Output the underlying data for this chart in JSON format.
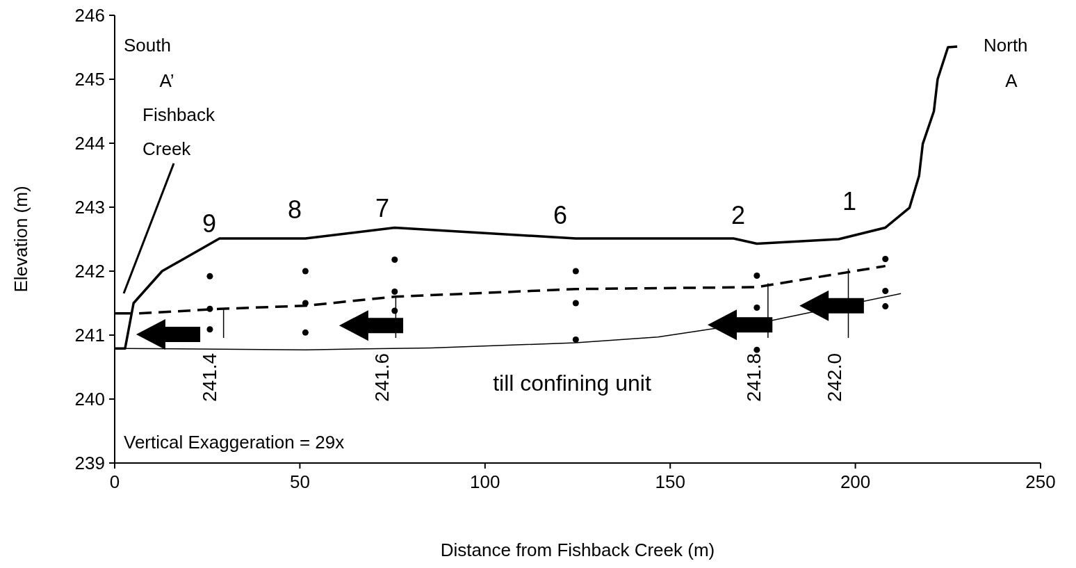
{
  "chart_data": {
    "type": "line",
    "xlabel": "Distance from Fishback Creek (m)",
    "ylabel": "Elevation (m)",
    "xlim": [
      0,
      250
    ],
    "xticks": [
      0,
      50,
      100,
      150,
      200,
      250
    ],
    "ylim": [
      239,
      246
    ],
    "yticks": [
      239,
      240,
      241,
      242,
      243,
      244,
      245,
      246
    ],
    "grid": false,
    "series": [
      {
        "color": "#000000",
        "line_style": "solid",
        "marker": "none",
        "x": [
          0,
          2.8,
          5.1,
          12.8,
          28.3,
          51.5,
          75.6,
          124.5,
          167.1,
          173.4,
          195.5,
          208.1,
          214.6,
          217.2,
          218.2,
          221.2,
          222.2,
          225.0,
          227.5
        ],
        "values": [
          240.79,
          240.79,
          241.5,
          242.0,
          242.51,
          242.51,
          242.68,
          242.51,
          242.51,
          242.43,
          242.5,
          242.68,
          242.99,
          243.49,
          243.99,
          244.5,
          245.0,
          245.5,
          245.51
        ]
      },
      {
        "color": "#000000",
        "line_style": "solid",
        "marker": "none",
        "x": [
          0,
          4.3
        ],
        "values": [
          241.34,
          241.34
        ]
      },
      {
        "color": "#000000",
        "line_style": "dashed",
        "marker": "none",
        "x": [
          6.6,
          28.5,
          51.5,
          75.6,
          124.5,
          173.4,
          208.1
        ],
        "values": [
          241.34,
          241.41,
          241.46,
          241.6,
          241.72,
          241.75,
          242.08
        ]
      },
      {
        "color": "#000000",
        "line_style": "solid",
        "marker": "none",
        "x": [
          2.8,
          51.6,
          85.4,
          124.5,
          146.7,
          159.2,
          177.6,
          212.3
        ],
        "values": [
          240.79,
          240.77,
          240.8,
          240.88,
          240.97,
          241.08,
          241.23,
          241.65
        ]
      },
      {
        "type": "scatter",
        "color": "#000000",
        "marker": "circle",
        "x": [
          25.7,
          25.7,
          25.7,
          51.5,
          51.5,
          51.5,
          75.6,
          75.6,
          75.6,
          124.5,
          124.5,
          124.5,
          173.4,
          173.4,
          173.4,
          208.1,
          208.1,
          208.1
        ],
        "values": [
          241.92,
          241.41,
          241.09,
          242.0,
          241.5,
          241.04,
          242.18,
          241.68,
          241.38,
          242.0,
          241.5,
          240.93,
          241.93,
          241.43,
          240.77,
          242.19,
          241.69,
          241.45
        ]
      }
    ],
    "annotations": [
      "South",
      "A’",
      "Fishback Creek",
      "North",
      "A",
      "till confining unit",
      "Vertical Exaggeration = 29x",
      "9",
      "8",
      "7",
      "6",
      "2",
      "1",
      {
        "text": "241.4",
        "x": 29.4,
        "y": 241.41
      },
      {
        "text": "241.6",
        "x": 75.9,
        "y": 241.62
      },
      {
        "text": "241.8",
        "x": 176.4,
        "y": 241.81
      },
      {
        "text": "242.0",
        "x": 198.1,
        "y": 242.04
      }
    ]
  }
}
